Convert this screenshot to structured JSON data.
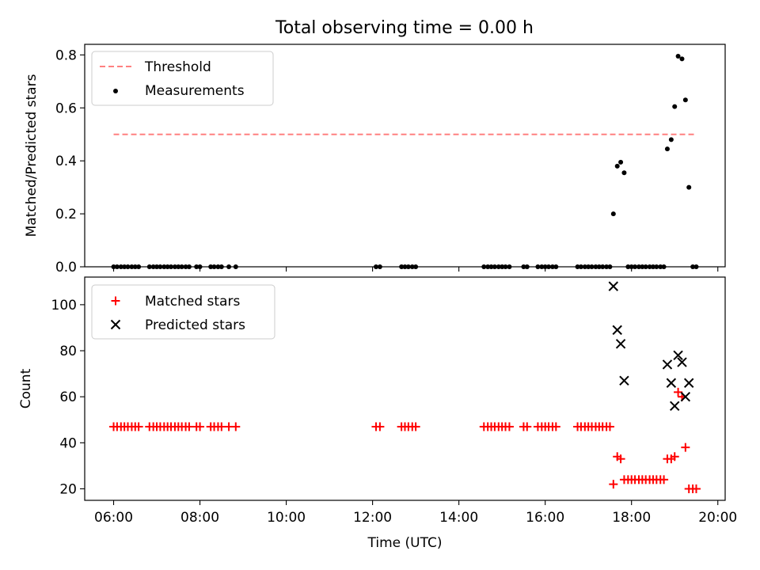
{
  "title": "Total observing time = 0.00 h",
  "chart_data": [
    {
      "type": "scatter",
      "ylabel": "Matched/Predicted stars",
      "xlim": [
        5.33,
        20.17
      ],
      "ylim": [
        0,
        0.84
      ],
      "yticks": [
        0,
        0.2,
        0.4,
        0.6,
        0.8
      ],
      "ytick_labels": [
        "0.0",
        "0.2",
        "0.4",
        "0.6",
        "0.8"
      ],
      "legend_position": "top-left",
      "threshold": {
        "name": "Threshold",
        "value": 0.5,
        "x_range": [
          6.0,
          19.5
        ],
        "color": "#ff8080"
      },
      "measurements": {
        "name": "Measurements",
        "color": "#000000",
        "points": [
          [
            6.0,
            0
          ],
          [
            6.08,
            0
          ],
          [
            6.17,
            0
          ],
          [
            6.25,
            0
          ],
          [
            6.33,
            0
          ],
          [
            6.42,
            0
          ],
          [
            6.5,
            0
          ],
          [
            6.58,
            0
          ],
          [
            6.83,
            0
          ],
          [
            6.92,
            0
          ],
          [
            7.0,
            0
          ],
          [
            7.08,
            0
          ],
          [
            7.17,
            0
          ],
          [
            7.25,
            0
          ],
          [
            7.33,
            0
          ],
          [
            7.42,
            0
          ],
          [
            7.5,
            0
          ],
          [
            7.58,
            0
          ],
          [
            7.67,
            0
          ],
          [
            7.75,
            0
          ],
          [
            7.92,
            0
          ],
          [
            8.0,
            0
          ],
          [
            8.25,
            0
          ],
          [
            8.33,
            0
          ],
          [
            8.42,
            0
          ],
          [
            8.5,
            0
          ],
          [
            8.67,
            0
          ],
          [
            8.83,
            0
          ],
          [
            12.08,
            0
          ],
          [
            12.17,
            0
          ],
          [
            12.67,
            0
          ],
          [
            12.75,
            0
          ],
          [
            12.83,
            0
          ],
          [
            12.92,
            0
          ],
          [
            13.0,
            0
          ],
          [
            14.58,
            0
          ],
          [
            14.67,
            0
          ],
          [
            14.75,
            0
          ],
          [
            14.83,
            0
          ],
          [
            14.92,
            0
          ],
          [
            15.0,
            0
          ],
          [
            15.08,
            0
          ],
          [
            15.17,
            0
          ],
          [
            15.5,
            0
          ],
          [
            15.58,
            0
          ],
          [
            15.83,
            0
          ],
          [
            15.92,
            0
          ],
          [
            16.0,
            0
          ],
          [
            16.08,
            0
          ],
          [
            16.17,
            0
          ],
          [
            16.25,
            0
          ],
          [
            16.75,
            0
          ],
          [
            16.83,
            0
          ],
          [
            16.92,
            0
          ],
          [
            17.0,
            0
          ],
          [
            17.08,
            0
          ],
          [
            17.17,
            0
          ],
          [
            17.25,
            0
          ],
          [
            17.33,
            0
          ],
          [
            17.42,
            0
          ],
          [
            17.5,
            0
          ],
          [
            17.58,
            0.2
          ],
          [
            17.67,
            0.38
          ],
          [
            17.75,
            0.395
          ],
          [
            17.83,
            0.355
          ],
          [
            17.92,
            0
          ],
          [
            18.0,
            0
          ],
          [
            18.08,
            0
          ],
          [
            18.17,
            0
          ],
          [
            18.25,
            0
          ],
          [
            18.33,
            0
          ],
          [
            18.42,
            0
          ],
          [
            18.5,
            0
          ],
          [
            18.58,
            0
          ],
          [
            18.67,
            0
          ],
          [
            18.75,
            0
          ],
          [
            18.83,
            0.445
          ],
          [
            18.92,
            0.48
          ],
          [
            19.0,
            0.605
          ],
          [
            19.08,
            0.795
          ],
          [
            19.17,
            0.785
          ],
          [
            19.25,
            0.63
          ],
          [
            19.33,
            0.3
          ],
          [
            19.42,
            0
          ],
          [
            19.5,
            0
          ]
        ]
      }
    },
    {
      "type": "scatter",
      "xlabel": "Time (UTC)",
      "ylabel": "Count",
      "xlim": [
        5.33,
        20.17
      ],
      "ylim": [
        15,
        112
      ],
      "yticks": [
        20,
        40,
        60,
        80,
        100
      ],
      "ytick_labels": [
        "20",
        "40",
        "60",
        "80",
        "100"
      ],
      "xticks": [
        6,
        8,
        10,
        12,
        14,
        16,
        18,
        20
      ],
      "xtick_labels": [
        "06:00",
        "08:00",
        "10:00",
        "12:00",
        "14:00",
        "16:00",
        "18:00",
        "20:00"
      ],
      "legend_position": "top-left",
      "series": [
        {
          "name": "Matched stars",
          "marker": "plus",
          "color": "#ff0000",
          "points": [
            [
              6.0,
              47
            ],
            [
              6.08,
              47
            ],
            [
              6.17,
              47
            ],
            [
              6.25,
              47
            ],
            [
              6.33,
              47
            ],
            [
              6.42,
              47
            ],
            [
              6.5,
              47
            ],
            [
              6.58,
              47
            ],
            [
              6.83,
              47
            ],
            [
              6.92,
              47
            ],
            [
              7.0,
              47
            ],
            [
              7.08,
              47
            ],
            [
              7.17,
              47
            ],
            [
              7.25,
              47
            ],
            [
              7.33,
              47
            ],
            [
              7.42,
              47
            ],
            [
              7.5,
              47
            ],
            [
              7.58,
              47
            ],
            [
              7.67,
              47
            ],
            [
              7.75,
              47
            ],
            [
              7.92,
              47
            ],
            [
              8.0,
              47
            ],
            [
              8.25,
              47
            ],
            [
              8.33,
              47
            ],
            [
              8.42,
              47
            ],
            [
              8.5,
              47
            ],
            [
              8.67,
              47
            ],
            [
              8.83,
              47
            ],
            [
              12.08,
              47
            ],
            [
              12.17,
              47
            ],
            [
              12.67,
              47
            ],
            [
              12.75,
              47
            ],
            [
              12.83,
              47
            ],
            [
              12.92,
              47
            ],
            [
              13.0,
              47
            ],
            [
              14.58,
              47
            ],
            [
              14.67,
              47
            ],
            [
              14.75,
              47
            ],
            [
              14.83,
              47
            ],
            [
              14.92,
              47
            ],
            [
              15.0,
              47
            ],
            [
              15.08,
              47
            ],
            [
              15.17,
              47
            ],
            [
              15.5,
              47
            ],
            [
              15.58,
              47
            ],
            [
              15.83,
              47
            ],
            [
              15.92,
              47
            ],
            [
              16.0,
              47
            ],
            [
              16.08,
              47
            ],
            [
              16.17,
              47
            ],
            [
              16.25,
              47
            ],
            [
              16.75,
              47
            ],
            [
              16.83,
              47
            ],
            [
              16.92,
              47
            ],
            [
              17.0,
              47
            ],
            [
              17.08,
              47
            ],
            [
              17.17,
              47
            ],
            [
              17.25,
              47
            ],
            [
              17.33,
              47
            ],
            [
              17.42,
              47
            ],
            [
              17.5,
              47
            ],
            [
              17.58,
              22
            ],
            [
              17.67,
              34
            ],
            [
              17.75,
              33
            ],
            [
              17.83,
              24
            ],
            [
              17.92,
              24
            ],
            [
              18.0,
              24
            ],
            [
              18.08,
              24
            ],
            [
              18.17,
              24
            ],
            [
              18.25,
              24
            ],
            [
              18.33,
              24
            ],
            [
              18.42,
              24
            ],
            [
              18.5,
              24
            ],
            [
              18.58,
              24
            ],
            [
              18.67,
              24
            ],
            [
              18.75,
              24
            ],
            [
              18.83,
              33
            ],
            [
              18.92,
              33
            ],
            [
              19.0,
              34
            ],
            [
              19.08,
              62
            ],
            [
              19.17,
              60
            ],
            [
              19.25,
              38
            ],
            [
              19.33,
              20
            ],
            [
              19.42,
              20
            ],
            [
              19.5,
              20
            ]
          ]
        },
        {
          "name": "Predicted stars",
          "marker": "x",
          "color": "#000000",
          "points": [
            [
              17.58,
              108
            ],
            [
              17.67,
              89
            ],
            [
              17.75,
              83
            ],
            [
              17.83,
              67
            ],
            [
              18.83,
              74
            ],
            [
              18.92,
              66
            ],
            [
              19.0,
              56
            ],
            [
              19.08,
              78
            ],
            [
              19.17,
              75
            ],
            [
              19.25,
              60
            ],
            [
              19.33,
              66
            ]
          ]
        }
      ]
    }
  ]
}
